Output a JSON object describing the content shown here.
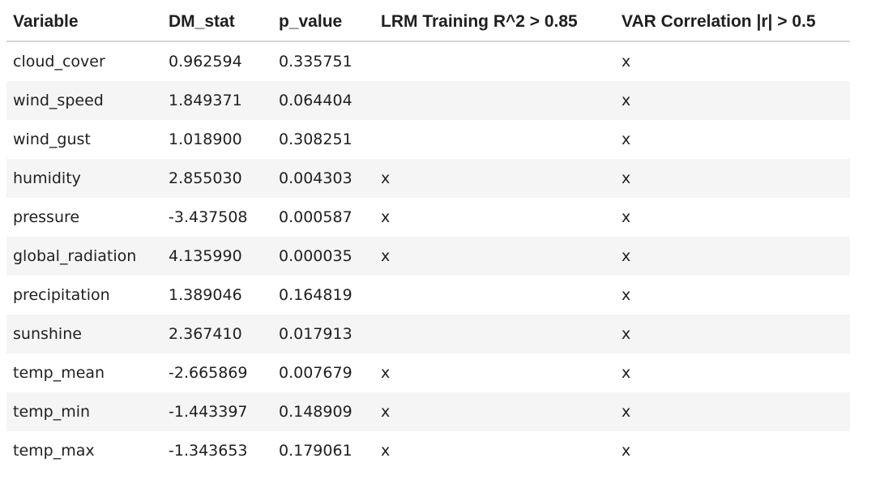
{
  "table": {
    "headers": [
      "Variable",
      "DM_stat",
      "p_value",
      "LRM Training R^2 > 0.85",
      "VAR Correlation |r| > 0.5"
    ],
    "rows": [
      [
        "cloud_cover",
        "0.962594",
        "0.335751",
        "",
        "x"
      ],
      [
        "wind_speed",
        "1.849371",
        "0.064404",
        "",
        "x"
      ],
      [
        "wind_gust",
        "1.018900",
        "0.308251",
        "",
        "x"
      ],
      [
        "humidity",
        "2.855030",
        "0.004303",
        "x",
        "x"
      ],
      [
        "pressure",
        "-3.437508",
        "0.000587",
        "x",
        "x"
      ],
      [
        "global_radiation",
        "4.135990",
        "0.000035",
        "x",
        "x"
      ],
      [
        "precipitation",
        "1.389046",
        "0.164819",
        "",
        "x"
      ],
      [
        "sunshine",
        "2.367410",
        "0.017913",
        "",
        "x"
      ],
      [
        "temp_mean",
        "-2.665869",
        "0.007679",
        "x",
        "x"
      ],
      [
        "temp_min",
        "-1.443397",
        "0.148909",
        "x",
        "x"
      ],
      [
        "temp_max",
        "-1.343653",
        "0.179061",
        "x",
        "x"
      ]
    ]
  }
}
